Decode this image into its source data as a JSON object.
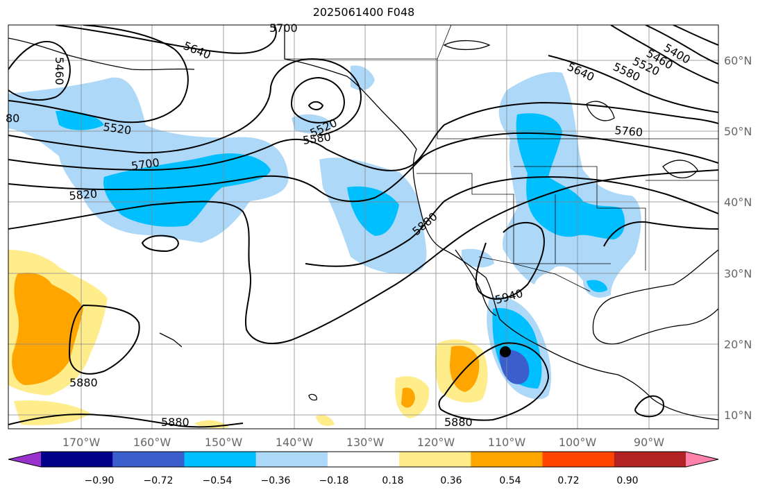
{
  "title": "2025061400 F048",
  "lat_labels": [
    "60°N",
    "50°N",
    "40°N",
    "30°N",
    "20°N",
    "10°N"
  ],
  "lon_labels": [
    "170°W",
    "160°W",
    "150°W",
    "140°W",
    "130°W",
    "120°W",
    "110°W",
    "100°W",
    "90°W"
  ],
  "contour_labels": [
    "5700",
    "5640",
    "5460",
    "5400",
    "5460",
    "5520",
    "5580",
    "5640",
    "5520",
    "5580",
    "5520",
    "80",
    "5760",
    "5700",
    "5820",
    "5880",
    "5940",
    "5880",
    "5880",
    "5880"
  ],
  "colorbar": {
    "colors": [
      "#9932cc",
      "#00008b",
      "#3a5fcd",
      "#00bfff",
      "#add8f8",
      "#ffffff",
      "#ffec8b",
      "#ffa500",
      "#ff4500",
      "#b22222",
      "#ff82ab"
    ],
    "tick_labels": [
      "−0.90",
      "−0.72",
      "−0.54",
      "−0.36",
      "−0.18",
      "0.18",
      "0.36",
      "0.54",
      "0.72",
      "0.90"
    ]
  }
}
